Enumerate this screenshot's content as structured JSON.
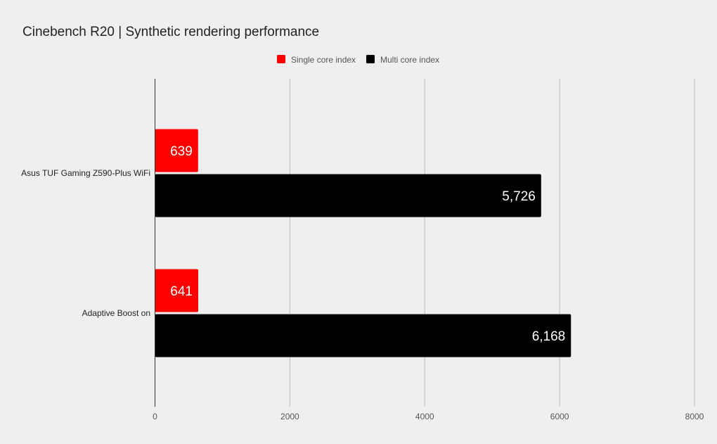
{
  "chart_data": {
    "type": "bar",
    "orientation": "horizontal",
    "title": "Cinebench R20 | Synthetic rendering performance",
    "categories": [
      "Asus TUF Gaming Z590-Plus WiFi",
      "Adaptive Boost on"
    ],
    "series": [
      {
        "name": "Single core index",
        "color": "#ff0000",
        "values": [
          639,
          641
        ],
        "labels": [
          "639",
          "641"
        ]
      },
      {
        "name": "Multi core index",
        "color": "#000000",
        "values": [
          5726,
          6168
        ],
        "labels": [
          "5,726",
          "6,168"
        ]
      }
    ],
    "xlim": [
      0,
      8000
    ],
    "xticks": [
      0,
      2000,
      4000,
      6000,
      8000
    ],
    "xtick_labels": [
      "0",
      "2000",
      "4000",
      "6000",
      "8000"
    ],
    "grid": true,
    "legend_position": "top-center"
  }
}
